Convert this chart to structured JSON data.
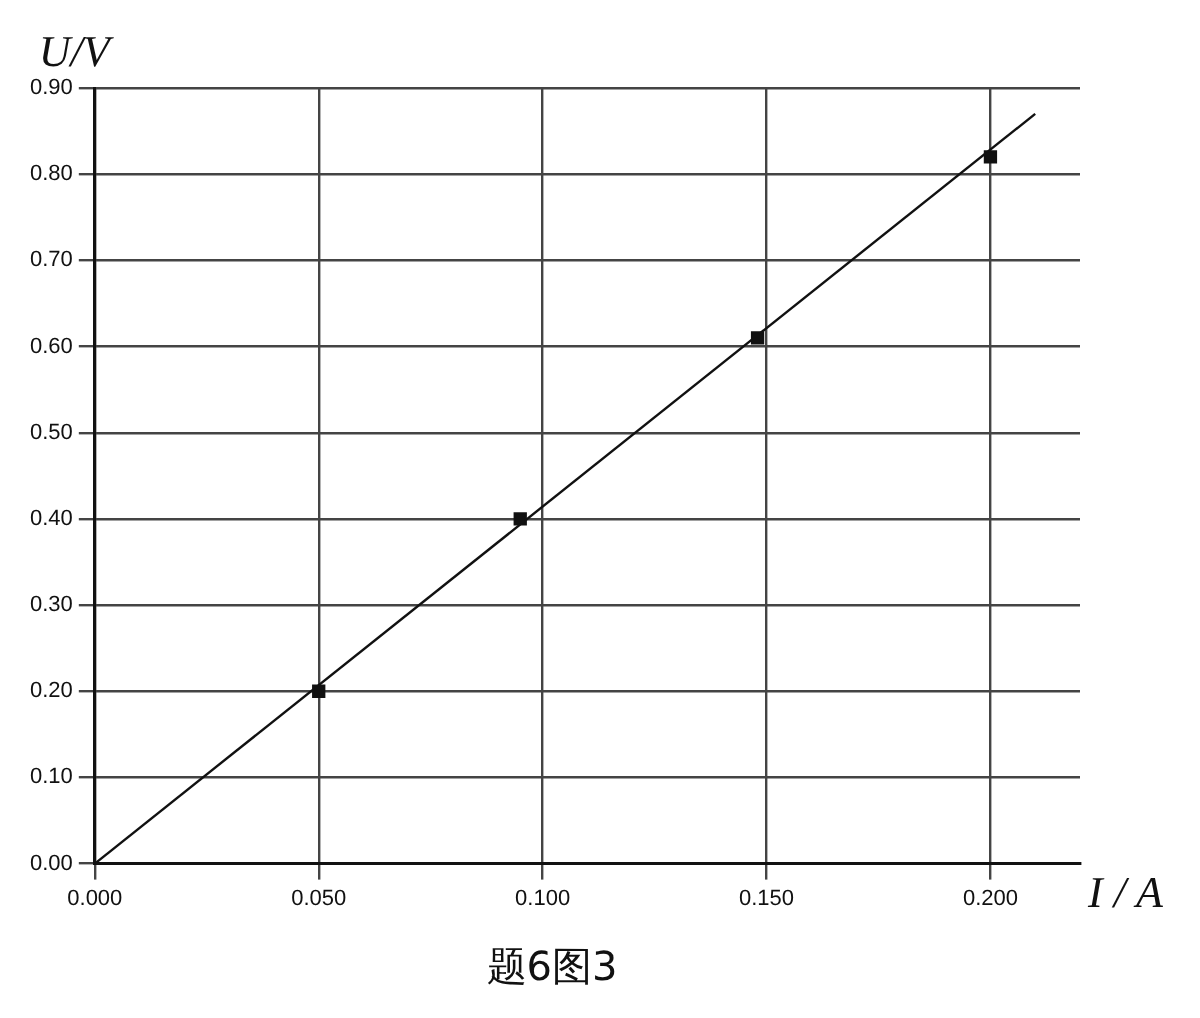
{
  "chart_data": {
    "type": "scatter",
    "title": "题6图3",
    "xlabel": "I / A",
    "ylabel": "U/V",
    "x": [
      0.05,
      0.095,
      0.148,
      0.2
    ],
    "series": [
      {
        "color": "#111111",
        "values": [
          0.2,
          0.4,
          0.61,
          0.82
        ],
        "marker": "square"
      },
      {
        "type": "line",
        "color": "#111111",
        "x": [
          0,
          0.21
        ],
        "values": [
          0,
          0.87
        ],
        "marker": "none",
        "line_style": "solid"
      }
    ],
    "xlim": [
      0,
      0.22
    ],
    "ylim": [
      0,
      0.9
    ],
    "xticks": [
      {
        "value": 0,
        "label": "0.000"
      },
      {
        "value": 0.05,
        "label": "0.050"
      },
      {
        "value": 0.1,
        "label": "0.100"
      },
      {
        "value": 0.15,
        "label": "0.150"
      },
      {
        "value": 0.2,
        "label": "0.200"
      }
    ],
    "yticks": [
      {
        "value": 0,
        "label": "0.00"
      },
      {
        "value": 0.1,
        "label": "0.10"
      },
      {
        "value": 0.2,
        "label": "0.20"
      },
      {
        "value": 0.3,
        "label": "0.30"
      },
      {
        "value": 0.4,
        "label": "0.40"
      },
      {
        "value": 0.5,
        "label": "0.50"
      },
      {
        "value": 0.6,
        "label": "0.60"
      },
      {
        "value": 0.7,
        "label": "0.70"
      },
      {
        "value": 0.8,
        "label": "0.80"
      },
      {
        "value": 0.9,
        "label": "0.90"
      }
    ],
    "grid": true,
    "legend": false
  }
}
